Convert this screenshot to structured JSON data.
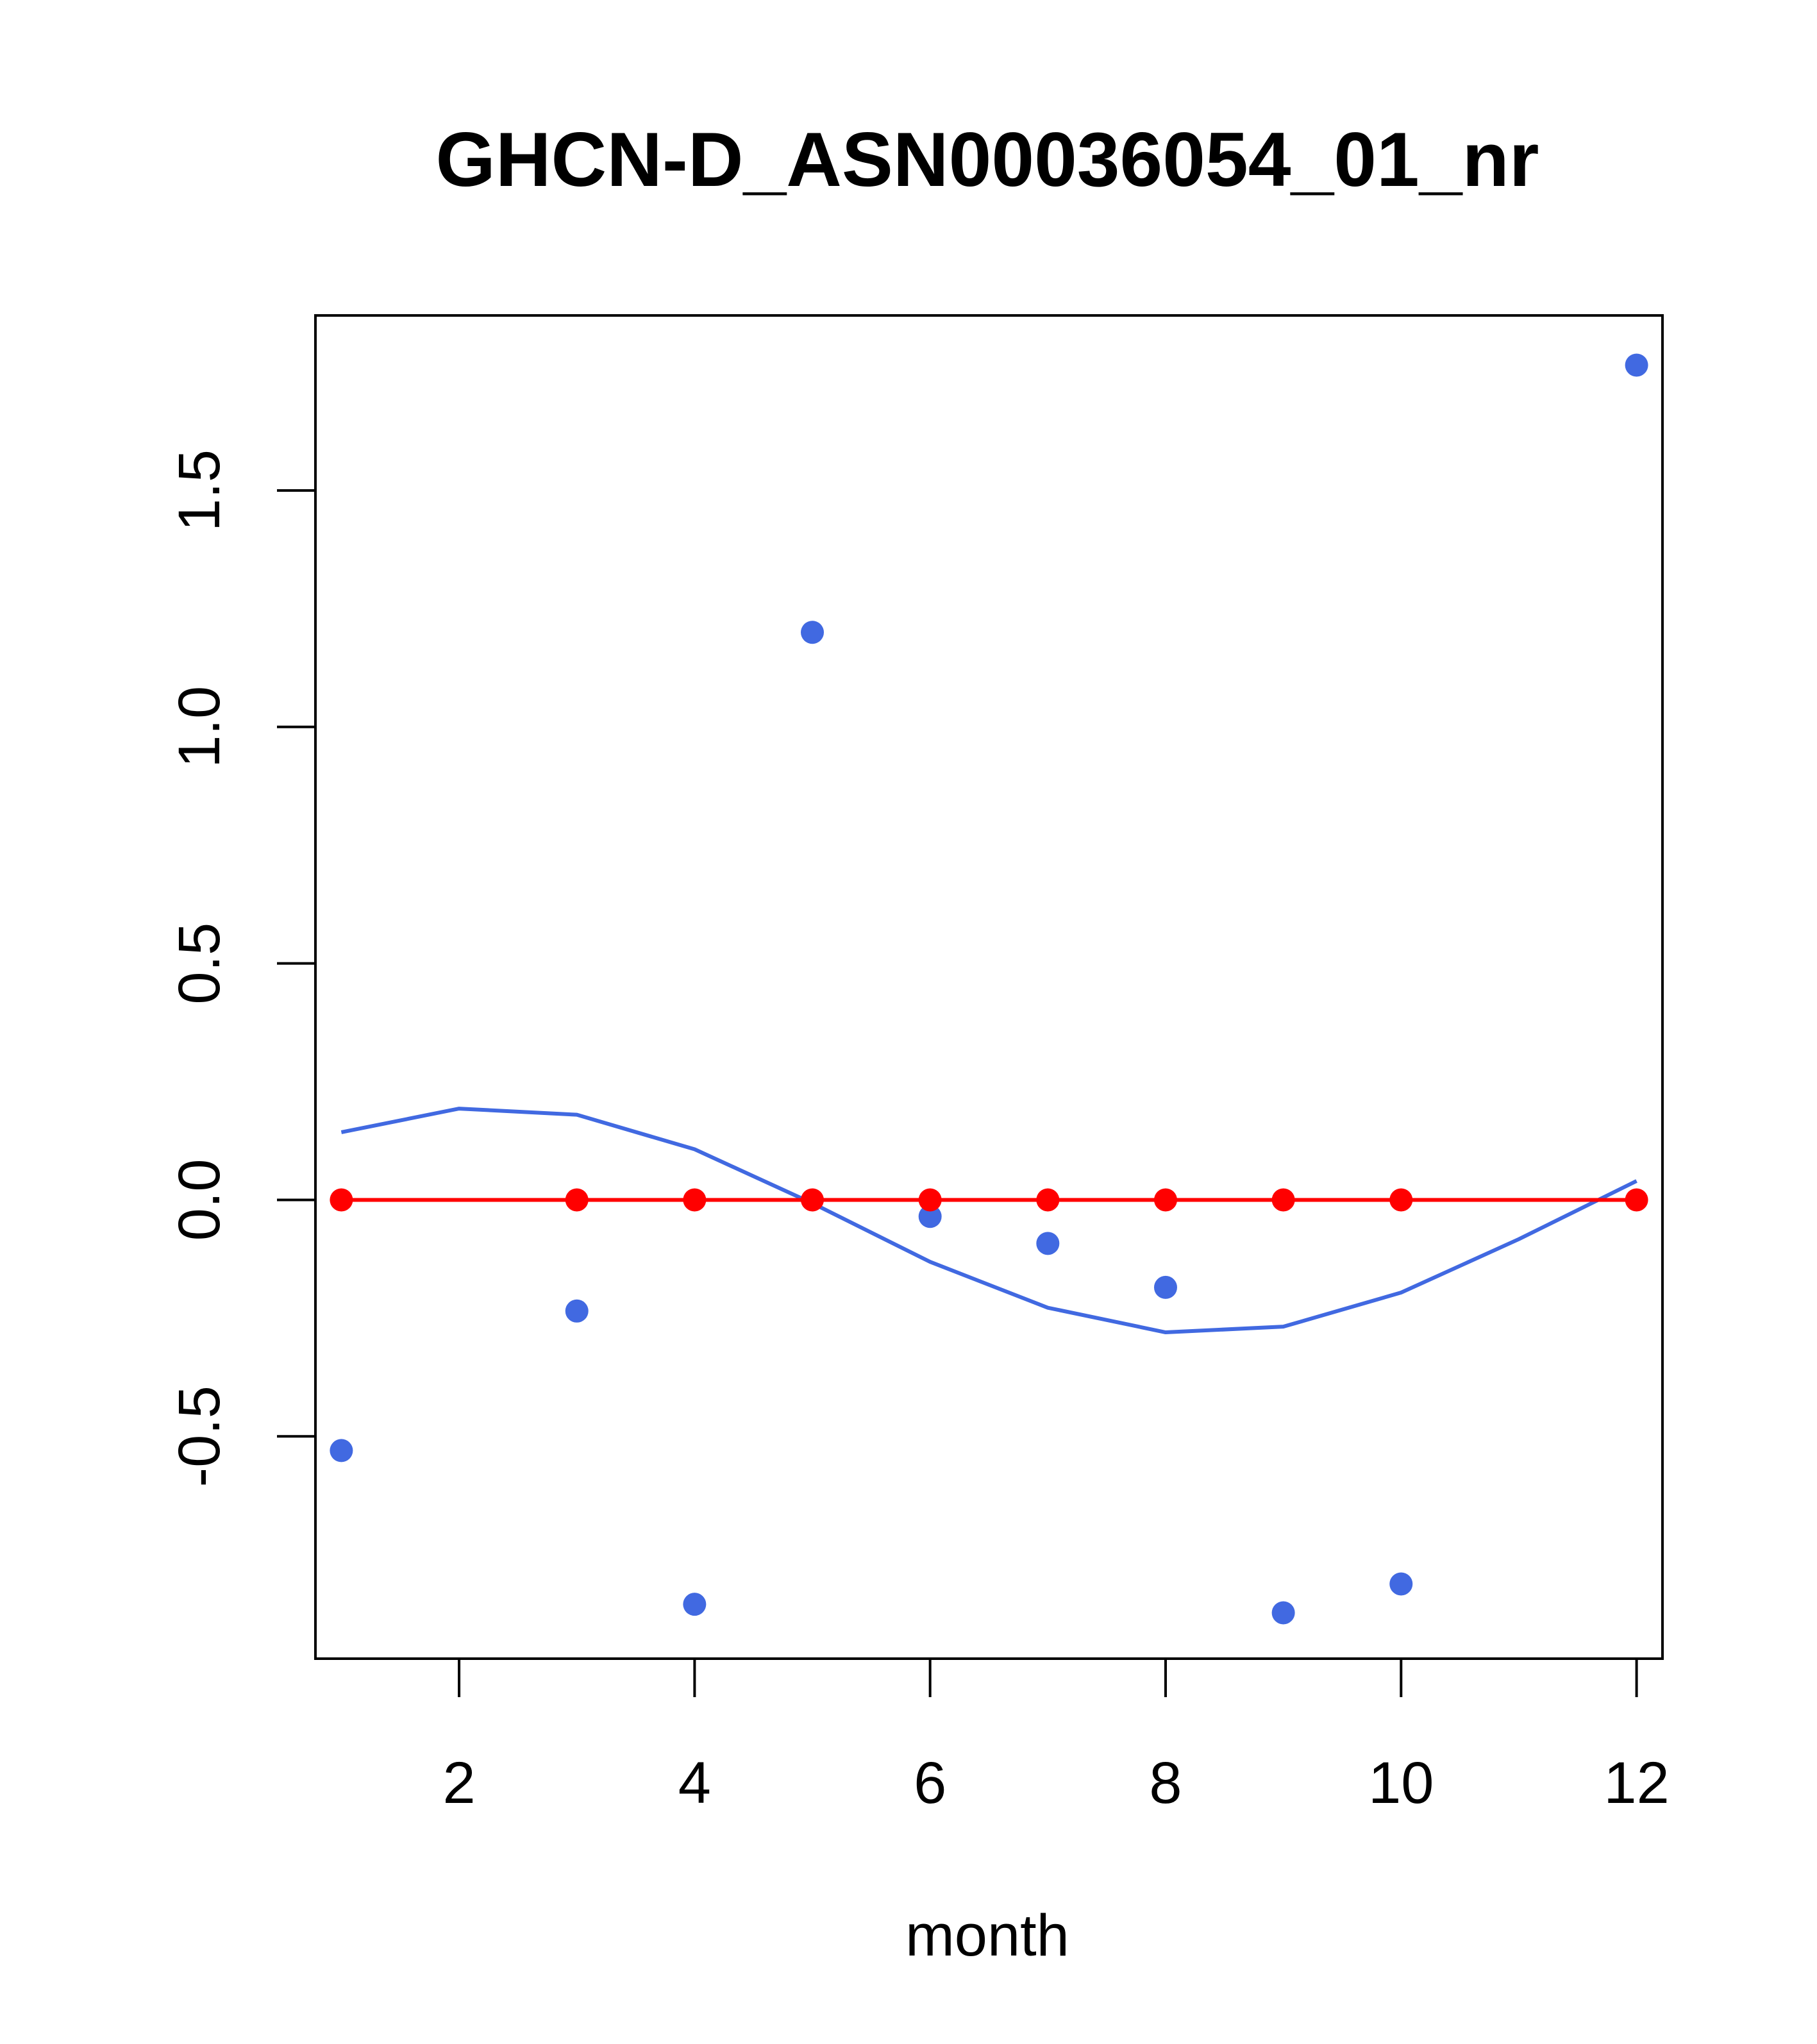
{
  "chart_data": {
    "type": "scatter",
    "title": "GHCN-D_ASN00036054_01_nr",
    "xlabel": "month",
    "ylabel": "",
    "xlim": [
      0.78,
      12.22
    ],
    "ylim": [
      -0.97,
      1.87
    ],
    "x_ticks": [
      2,
      4,
      6,
      8,
      10,
      12
    ],
    "y_ticks": [
      -0.5,
      0.0,
      0.5,
      1.0,
      1.5
    ],
    "x_tick_labels": [
      "2",
      "4",
      "6",
      "8",
      "10",
      "12"
    ],
    "y_tick_labels": [
      "-0.5",
      "0.0",
      "0.5",
      "1.0",
      "1.5"
    ],
    "grid": false,
    "series": [
      {
        "kind": "points",
        "color": "#4169E1",
        "x": [
          1,
          3,
          4,
          5,
          6,
          7,
          8,
          9,
          10,
          12
        ],
        "y": [
          -0.53,
          -0.235,
          -0.855,
          1.2,
          -0.035,
          -0.092,
          -0.185,
          -0.873,
          -0.812,
          1.765
        ]
      },
      {
        "kind": "line",
        "color": "#4169E1",
        "x": [
          1,
          2,
          3,
          4,
          5,
          6,
          7,
          8,
          9,
          10,
          11,
          12
        ],
        "y": [
          0.143,
          0.193,
          0.18,
          0.107,
          -0.007,
          -0.131,
          -0.228,
          -0.28,
          -0.268,
          -0.196,
          -0.083,
          0.04
        ]
      },
      {
        "kind": "line-points",
        "color": "#FF0000",
        "x": [
          1,
          3,
          4,
          5,
          6,
          7,
          8,
          9,
          10,
          12
        ],
        "y": [
          0,
          0,
          0,
          0,
          0,
          0,
          0,
          0,
          0,
          0
        ]
      }
    ]
  }
}
